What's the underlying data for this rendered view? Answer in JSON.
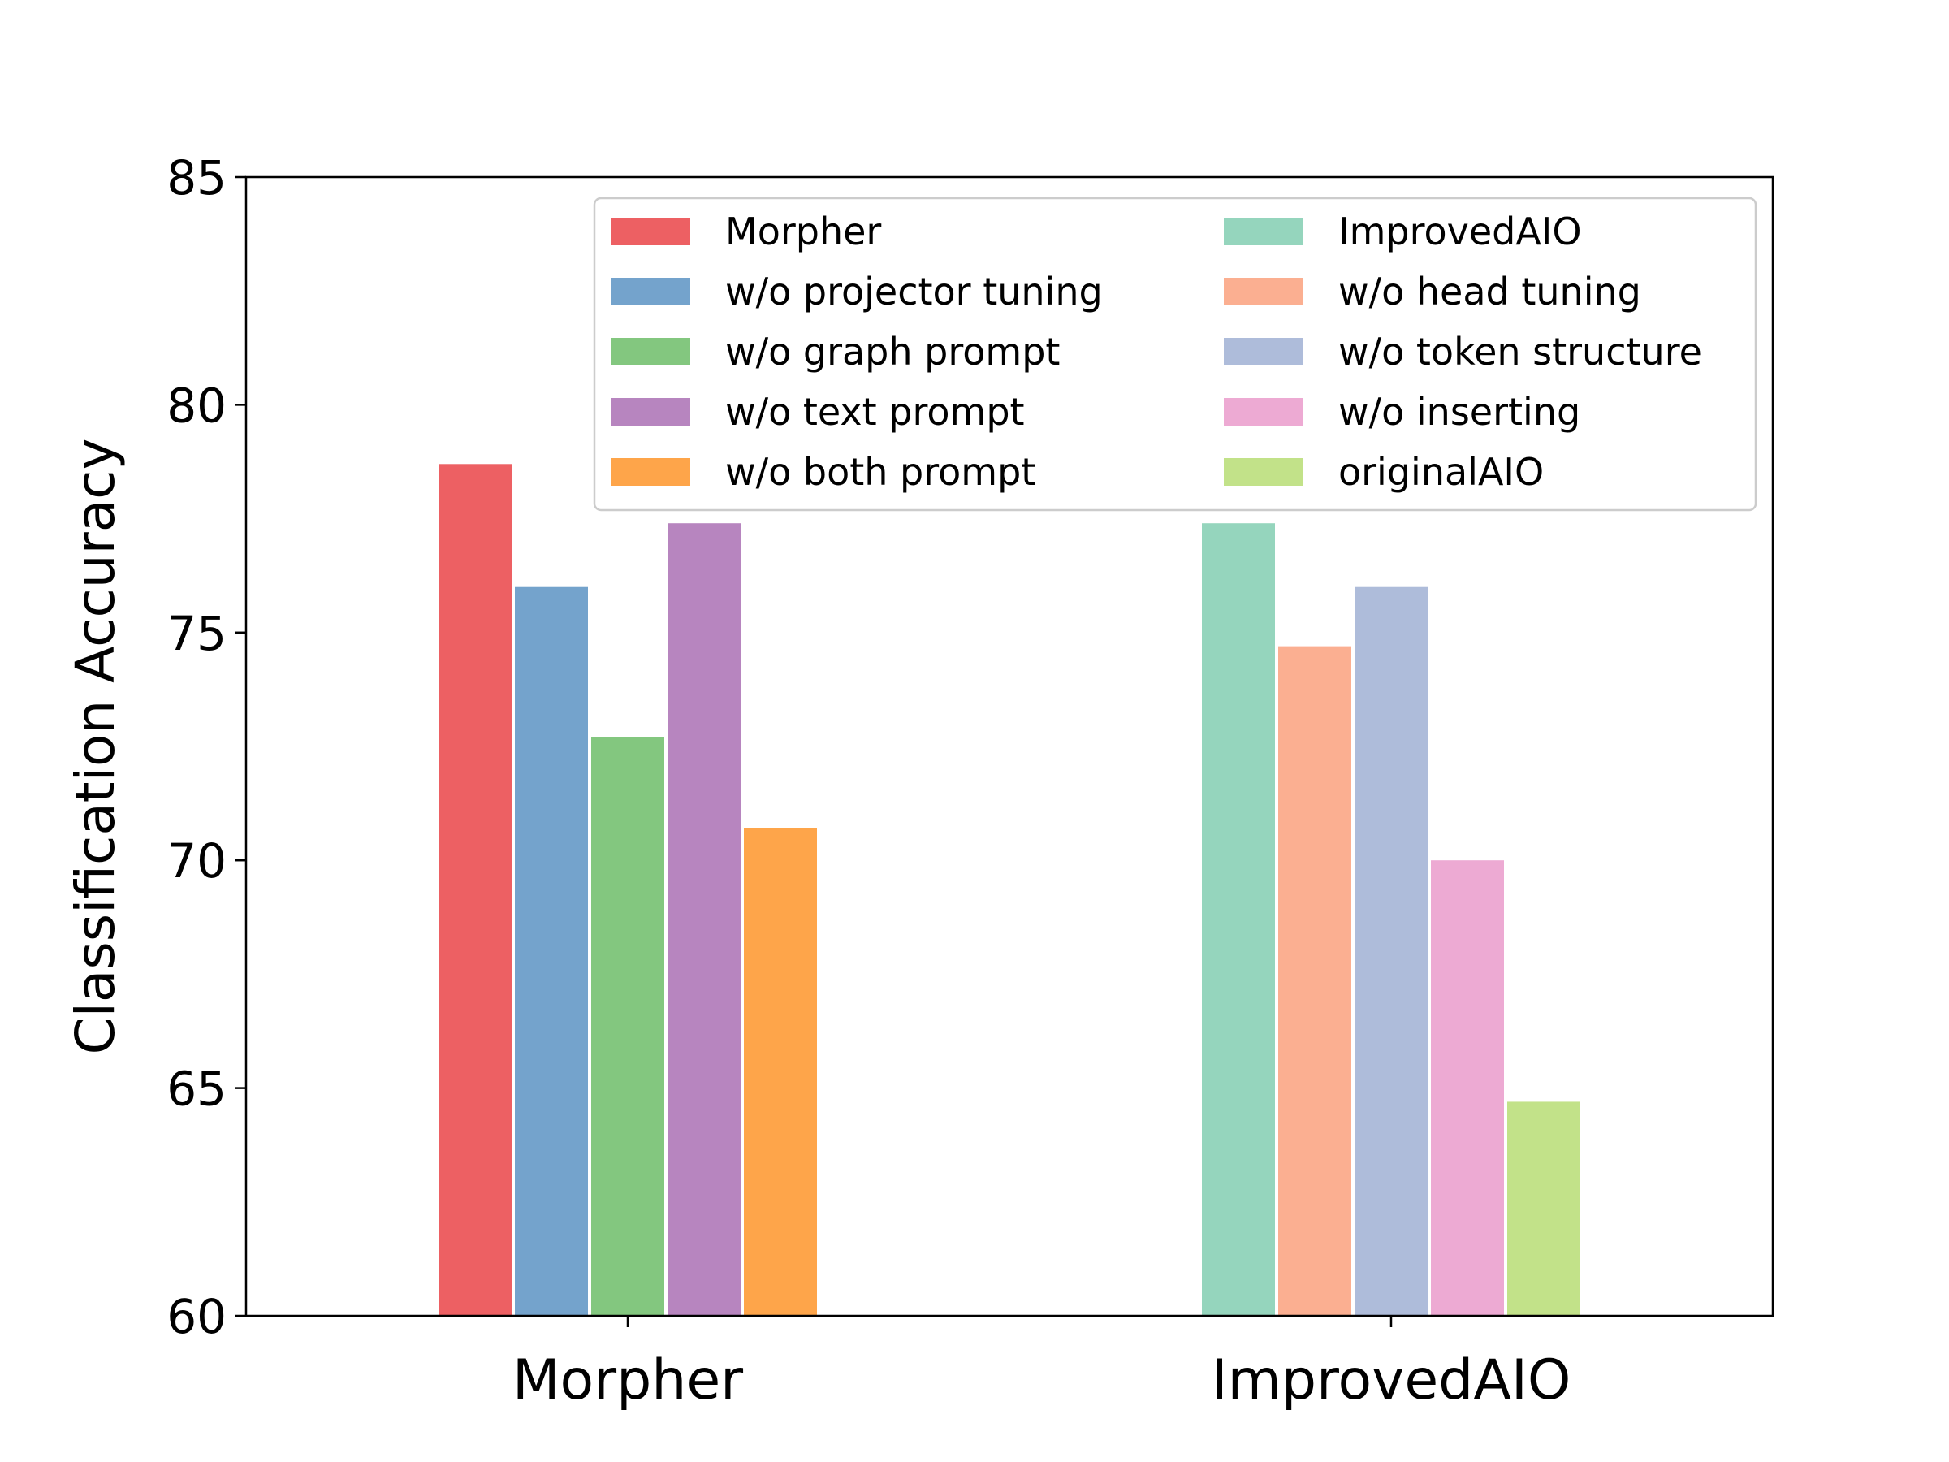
{
  "chart_data": {
    "type": "bar",
    "title": "",
    "xlabel": "",
    "ylabel": "Classification Accuracy",
    "ylim": [
      60,
      85
    ],
    "yticks": [
      60,
      65,
      70,
      75,
      80,
      85
    ],
    "grid": false,
    "legend_position": "top-right",
    "legend_columns": 2,
    "groups": [
      {
        "category": "Morpher",
        "bars": [
          {
            "name": "Morpher",
            "value": 78.7,
            "color": "#ed6063"
          },
          {
            "name": "w/o projector tuning",
            "value": 76.0,
            "color": "#74a3cc"
          },
          {
            "name": "w/o graph prompt",
            "value": 72.7,
            "color": "#83c77f"
          },
          {
            "name": "w/o text prompt",
            "value": 77.4,
            "color": "#b785bf"
          },
          {
            "name": "w/o both prompt",
            "value": 70.7,
            "color": "#fea54a"
          }
        ]
      },
      {
        "category": "ImprovedAIO",
        "bars": [
          {
            "name": "ImprovedAIO",
            "value": 77.4,
            "color": "#95d5bd"
          },
          {
            "name": "w/o head tuning",
            "value": 74.7,
            "color": "#fbaf91"
          },
          {
            "name": "w/o token structure",
            "value": 76.0,
            "color": "#aebcda"
          },
          {
            "name": "w/o inserting",
            "value": 70.0,
            "color": "#edaad3"
          },
          {
            "name": "originalAIO",
            "value": 64.7,
            "color": "#c2e289"
          }
        ]
      }
    ]
  }
}
